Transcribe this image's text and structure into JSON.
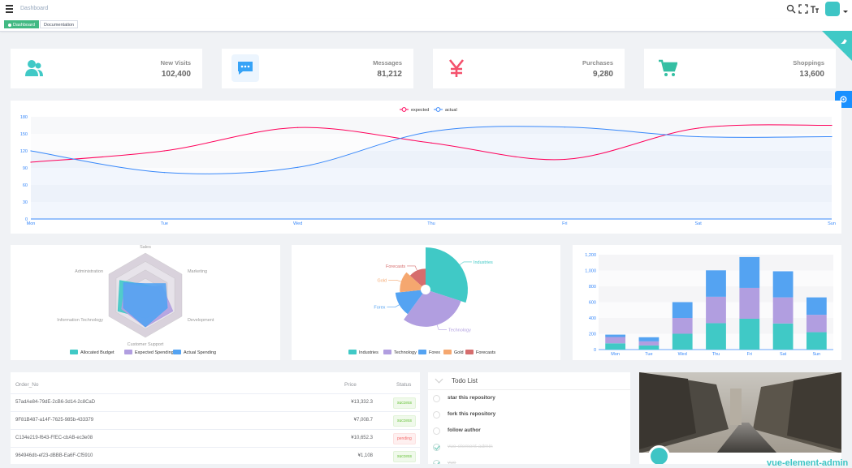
{
  "navbar": {
    "breadcrumb": "Dashboard",
    "icons": [
      "hamburger-icon",
      "search-icon",
      "fullscreen-icon",
      "font-size-icon"
    ]
  },
  "tags": [
    {
      "label": "Dashboard",
      "active": true
    },
    {
      "label": "Documentation",
      "active": false
    }
  ],
  "cards": [
    {
      "title": "New Visits",
      "value": "102,400",
      "icon": "peoples-icon",
      "color": "#40c9c6"
    },
    {
      "title": "Messages",
      "value": "81,212",
      "icon": "message-icon",
      "color": "#36a3f7"
    },
    {
      "title": "Purchases",
      "value": "9,280",
      "icon": "money-icon",
      "color": "#f4516c"
    },
    {
      "title": "Shoppings",
      "value": "13,600",
      "icon": "shopping-icon",
      "color": "#34bfa3"
    }
  ],
  "chart_data": [
    {
      "type": "line",
      "categories": [
        "Mon",
        "Tue",
        "Wed",
        "Thu",
        "Fri",
        "Sat",
        "Sun"
      ],
      "series": [
        {
          "name": "expected",
          "values": [
            100,
            120,
            161,
            134,
            105,
            160,
            165
          ],
          "color": "#ff005a"
        },
        {
          "name": "actual",
          "values": [
            120,
            82,
            91,
            154,
            162,
            145,
            145
          ],
          "color": "#3888fa"
        }
      ],
      "ylim": [
        0,
        180
      ],
      "yticks": [
        0,
        30,
        60,
        90,
        120,
        150,
        180
      ],
      "legend": "top"
    },
    {
      "type": "radar",
      "indicators": [
        "Sales",
        "Marketing",
        "Development",
        "Customer Support",
        "Information Technology",
        "Administration"
      ],
      "max": 20000,
      "series": [
        {
          "name": "Allocated Budget",
          "values": [
            5000,
            7000,
            12000,
            11000,
            15000,
            14000
          ],
          "color": "#40c9c6"
        },
        {
          "name": "Expected Spending",
          "values": [
            4000,
            9000,
            15000,
            15000,
            13000,
            11000
          ],
          "color": "#b19ee0"
        },
        {
          "name": "Actual Spending",
          "values": [
            5500,
            11000,
            12000,
            15000,
            12000,
            12000
          ],
          "color": "#54a3f2"
        }
      ],
      "legend": "bottom"
    },
    {
      "type": "pie",
      "rose": true,
      "slices": [
        {
          "name": "Industries",
          "value": 320,
          "color": "#40c9c6"
        },
        {
          "name": "Technology",
          "value": 240,
          "color": "#b19ee0"
        },
        {
          "name": "Forex",
          "value": 149,
          "color": "#54a3f2"
        },
        {
          "name": "Gold",
          "value": 100,
          "color": "#f5a76f"
        },
        {
          "name": "Forecasts",
          "value": 59,
          "color": "#d66d6d"
        }
      ],
      "legend": "bottom"
    },
    {
      "type": "bar",
      "stacked": true,
      "categories": [
        "Mon",
        "Tue",
        "Wed",
        "Thu",
        "Fri",
        "Sat",
        "Sun"
      ],
      "series": [
        {
          "name": "pageA",
          "values": [
            79,
            52,
            200,
            334,
            390,
            330,
            220
          ],
          "color": "#40c9c6"
        },
        {
          "name": "pageB",
          "values": [
            80,
            52,
            200,
            334,
            390,
            330,
            220
          ],
          "color": "#b19ee0"
        },
        {
          "name": "pageC",
          "values": [
            30,
            52,
            200,
            334,
            390,
            330,
            220
          ],
          "color": "#54a3f2"
        }
      ],
      "ylim": [
        0,
        1200
      ],
      "yticks": [
        0,
        200,
        400,
        600,
        800,
        "1,000",
        "1,200"
      ]
    }
  ],
  "table": {
    "headers": {
      "order": "Order_No",
      "price": "Price",
      "status": "Status"
    },
    "rows": [
      {
        "order": "57adAe84-79dE-2cB6-3d14-2c8CaD",
        "price": "¥13,332.3",
        "status": "success"
      },
      {
        "order": "9F81B487-a14F-7625-985b-433379",
        "price": "¥7,008.7",
        "status": "success"
      },
      {
        "order": "C134e219-f643-FfEC-cbAB-ec3e08",
        "price": "¥10,652.3",
        "status": "pending"
      },
      {
        "order": "964946db-ef23-dBBB-Ea6F-Cf5910",
        "price": "¥1,108",
        "status": "success"
      }
    ]
  },
  "todo": {
    "title": "Todo List",
    "items": [
      {
        "text": "star this repository",
        "done": false
      },
      {
        "text": "fork this repository",
        "done": false
      },
      {
        "text": "follow author",
        "done": false
      },
      {
        "text": "vue-element-admin",
        "done": true
      },
      {
        "text": "vue",
        "done": true
      }
    ]
  },
  "usercard": {
    "name": "vue-element-admin"
  }
}
